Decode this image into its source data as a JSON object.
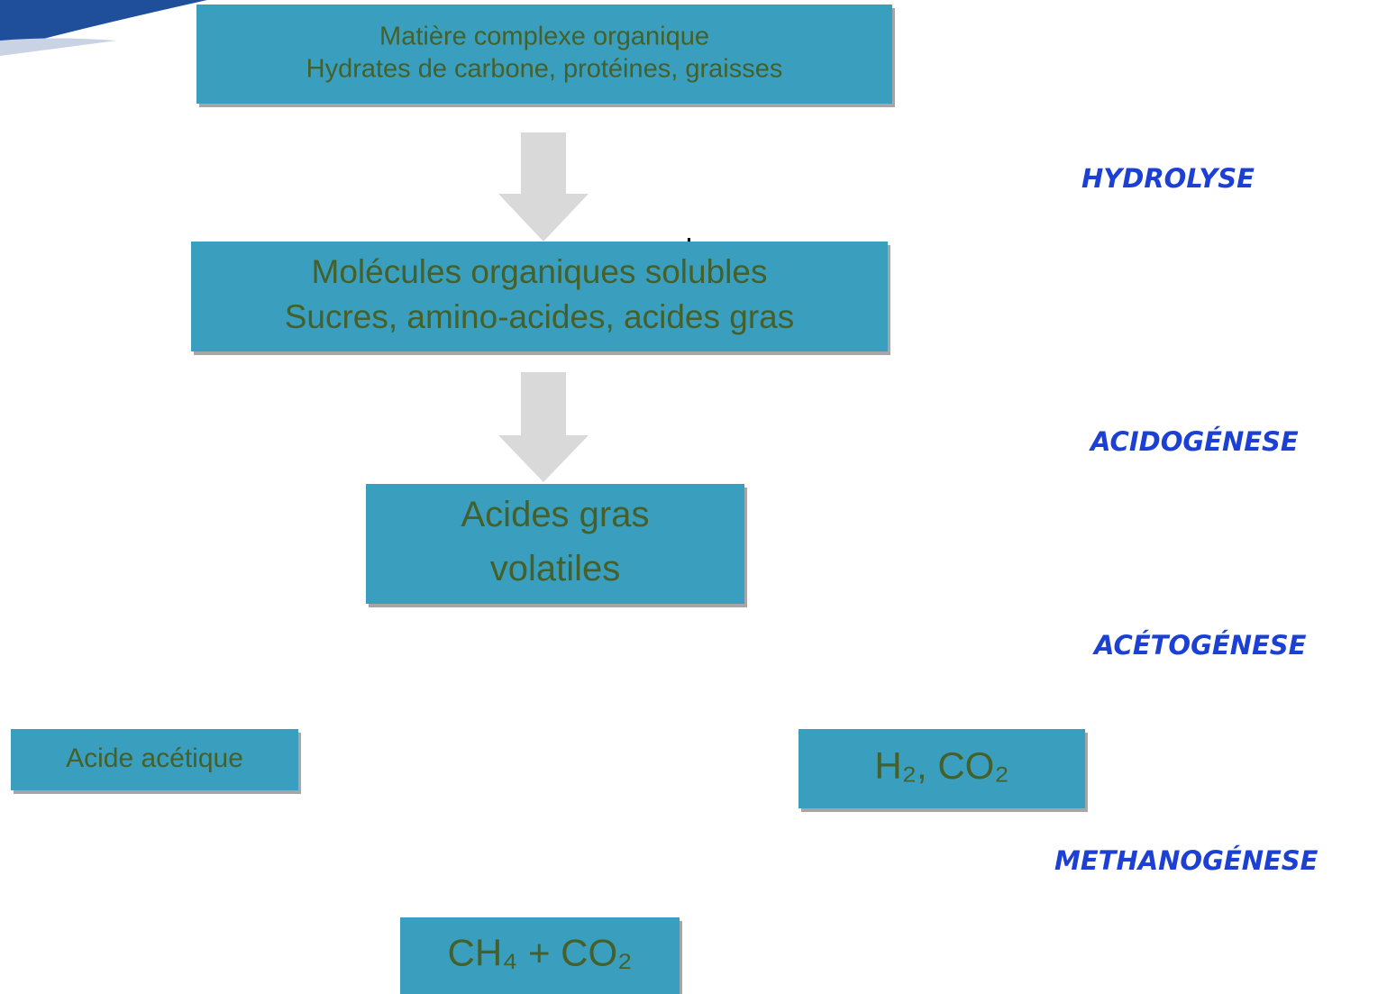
{
  "nodes": [
    {
      "lines": [
        "Matière complexe organique",
        "Hydrates de carbone, protéines, graisses"
      ]
    },
    {
      "lines": [
        "Molécules organiques solubles",
        "Sucres, amino-acides, acides gras"
      ]
    },
    {
      "lines": [
        "Acides gras",
        "volatiles"
      ]
    },
    {
      "lines": [
        "Acide acétique"
      ]
    },
    {
      "lines": [
        "H₂, CO₂"
      ]
    },
    {
      "lines": [
        "CH₄ + CO₂"
      ]
    }
  ],
  "stages": [
    "HYDROLYSE",
    "ACIDOGÉNESE",
    "ACÉTOGÉNESE",
    "METHANOGÉNESE"
  ]
}
